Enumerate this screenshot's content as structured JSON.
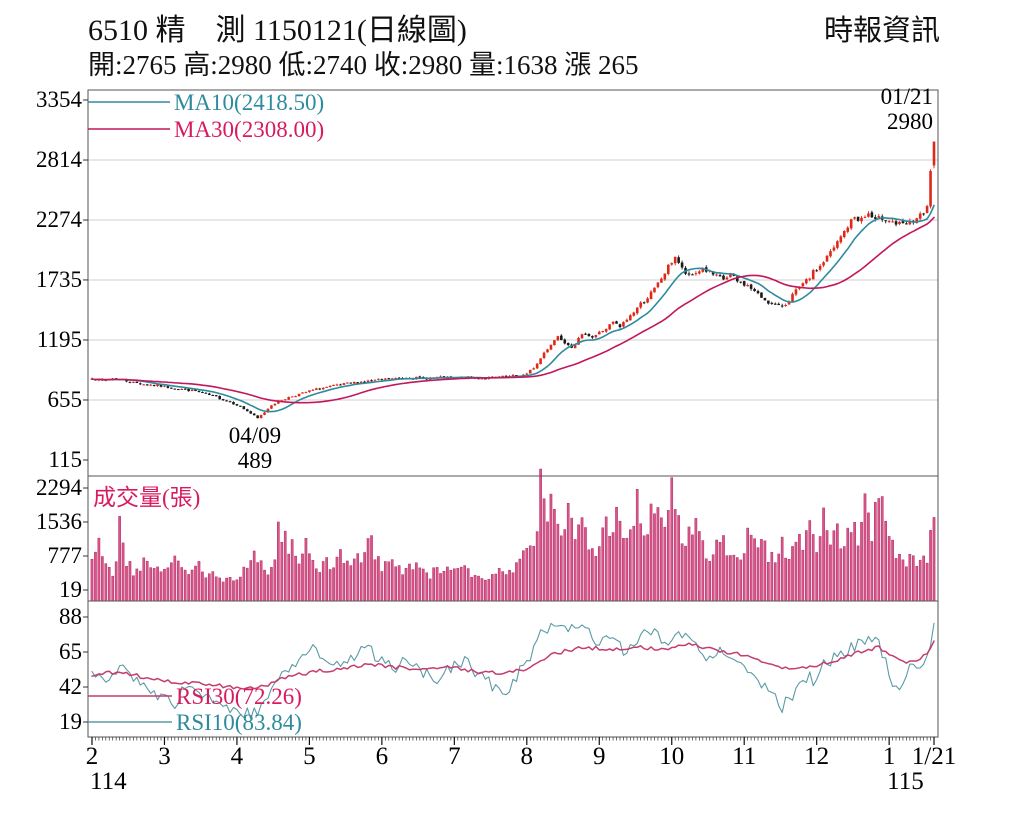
{
  "header": {
    "title": "6510 精　測 1150121(日線圖)",
    "source": "時報資訊",
    "info": "開:2765 高:2980 低:2740 收:2980 量:1638 漲 265"
  },
  "quote": {
    "open": 2765,
    "high": 2980,
    "low": 2740,
    "close": 2980,
    "volume": 1638,
    "change": 265
  },
  "chart_data": {
    "type": "candlestick",
    "title": "6510 精　測 1150121(日線圖)",
    "seed": 7,
    "n_days": 245,
    "grid": true,
    "x_axis": {
      "month_ticks": [
        {
          "label": "2",
          "day": 0
        },
        {
          "label": "3",
          "day": 21
        },
        {
          "label": "4",
          "day": 42
        },
        {
          "label": "5",
          "day": 63
        },
        {
          "label": "6",
          "day": 84
        },
        {
          "label": "7",
          "day": 105
        },
        {
          "label": "8",
          "day": 126
        },
        {
          "label": "9",
          "day": 147
        },
        {
          "label": "10",
          "day": 168
        },
        {
          "label": "11",
          "day": 189
        },
        {
          "label": "12",
          "day": 210
        },
        {
          "label": "1",
          "day": 231
        }
      ],
      "last_tick": {
        "label": "1/21",
        "day": 244
      },
      "year_labels": [
        {
          "label": "114",
          "day": 0
        },
        {
          "label": "115",
          "day": 231
        }
      ]
    },
    "price_panel": {
      "yticks": [
        3354,
        2814,
        2274,
        1735,
        1195,
        655,
        115
      ],
      "ylim": [
        115,
        3354
      ],
      "up_color": "#e02818",
      "down_color": "#1a1a1a",
      "legend": [
        {
          "label": "MA10(2418.50)",
          "name": "MA10",
          "value": 2418.5,
          "period": 10,
          "color": "#2e8b9e"
        },
        {
          "label": "MA30(2308.00)",
          "name": "MA30",
          "value": 2308.0,
          "period": 30,
          "color": "#c2175b"
        }
      ],
      "annotations": [
        {
          "date": "01/21",
          "value": "2980",
          "day": 244,
          "position": "peak"
        },
        {
          "date": "04/09",
          "value": "489",
          "day": 48,
          "position": "trough"
        }
      ],
      "last_candle": {
        "open": 2765,
        "high": 2980,
        "low": 2740,
        "close": 2980
      },
      "close_keypoints": [
        [
          0,
          855
        ],
        [
          3,
          825
        ],
        [
          6,
          850
        ],
        [
          9,
          835
        ],
        [
          12,
          812
        ],
        [
          15,
          798
        ],
        [
          18,
          788
        ],
        [
          21,
          775
        ],
        [
          24,
          762
        ],
        [
          27,
          748
        ],
        [
          30,
          735
        ],
        [
          33,
          705
        ],
        [
          36,
          682
        ],
        [
          39,
          648
        ],
        [
          42,
          612
        ],
        [
          45,
          555
        ],
        [
          48,
          489
        ],
        [
          50,
          545
        ],
        [
          52,
          612
        ],
        [
          55,
          655
        ],
        [
          58,
          690
        ],
        [
          61,
          715
        ],
        [
          63,
          735
        ],
        [
          66,
          758
        ],
        [
          69,
          775
        ],
        [
          72,
          792
        ],
        [
          75,
          805
        ],
        [
          78,
          818
        ],
        [
          81,
          828
        ],
        [
          84,
          838
        ],
        [
          88,
          848
        ],
        [
          92,
          855
        ],
        [
          96,
          850
        ],
        [
          100,
          856
        ],
        [
          104,
          852
        ],
        [
          108,
          858
        ],
        [
          112,
          850
        ],
        [
          116,
          856
        ],
        [
          120,
          862
        ],
        [
          124,
          876
        ],
        [
          126,
          885
        ],
        [
          129,
          980
        ],
        [
          131,
          1080
        ],
        [
          133,
          1160
        ],
        [
          135,
          1230
        ],
        [
          137,
          1180
        ],
        [
          139,
          1140
        ],
        [
          141,
          1200
        ],
        [
          143,
          1260
        ],
        [
          145,
          1220
        ],
        [
          147,
          1260
        ],
        [
          149,
          1300
        ],
        [
          151,
          1350
        ],
        [
          153,
          1310
        ],
        [
          155,
          1380
        ],
        [
          157,
          1450
        ],
        [
          159,
          1520
        ],
        [
          161,
          1580
        ],
        [
          163,
          1650
        ],
        [
          165,
          1750
        ],
        [
          167,
          1850
        ],
        [
          169,
          1950
        ],
        [
          171,
          1830
        ],
        [
          173,
          1760
        ],
        [
          175,
          1800
        ],
        [
          177,
          1840
        ],
        [
          179,
          1800
        ],
        [
          181,
          1760
        ],
        [
          183,
          1740
        ],
        [
          185,
          1780
        ],
        [
          187,
          1720
        ],
        [
          189,
          1700
        ],
        [
          191,
          1660
        ],
        [
          193,
          1600
        ],
        [
          195,
          1560
        ],
        [
          197,
          1520
        ],
        [
          199,
          1490
        ],
        [
          201,
          1520
        ],
        [
          203,
          1600
        ],
        [
          205,
          1660
        ],
        [
          207,
          1720
        ],
        [
          209,
          1800
        ],
        [
          211,
          1860
        ],
        [
          213,
          1940
        ],
        [
          215,
          2020
        ],
        [
          217,
          2120
        ],
        [
          219,
          2220
        ],
        [
          221,
          2300
        ],
        [
          223,
          2280
        ],
        [
          225,
          2330
        ],
        [
          227,
          2260
        ],
        [
          229,
          2300
        ],
        [
          231,
          2280
        ],
        [
          233,
          2240
        ],
        [
          235,
          2225
        ],
        [
          237,
          2240
        ],
        [
          239,
          2290
        ],
        [
          241,
          2320
        ],
        [
          242,
          2380
        ],
        [
          243,
          2715
        ],
        [
          244,
          2980
        ]
      ]
    },
    "volume_panel": {
      "label": "成交量(張)",
      "yticks": [
        2294,
        1536,
        777,
        19
      ],
      "bar_color": "#d9548c",
      "bar_edge": "#a81d52",
      "last_volume": 1638,
      "volume_keypoints": [
        [
          0,
          700
        ],
        [
          2,
          950
        ],
        [
          4,
          500
        ],
        [
          6,
          420
        ],
        [
          8,
          1350
        ],
        [
          10,
          620
        ],
        [
          12,
          420
        ],
        [
          14,
          360
        ],
        [
          16,
          820
        ],
        [
          18,
          520
        ],
        [
          20,
          420
        ],
        [
          22,
          520
        ],
        [
          24,
          720
        ],
        [
          26,
          460
        ],
        [
          28,
          360
        ],
        [
          30,
          620
        ],
        [
          32,
          420
        ],
        [
          34,
          320
        ],
        [
          36,
          360
        ],
        [
          38,
          260
        ],
        [
          40,
          310
        ],
        [
          42,
          230
        ],
        [
          44,
          420
        ],
        [
          46,
          620
        ],
        [
          48,
          820
        ],
        [
          50,
          520
        ],
        [
          52,
          430
        ],
        [
          54,
          1380
        ],
        [
          56,
          1250
        ],
        [
          58,
          920
        ],
        [
          60,
          720
        ],
        [
          62,
          1120
        ],
        [
          64,
          820
        ],
        [
          66,
          520
        ],
        [
          68,
          620
        ],
        [
          70,
          430
        ],
        [
          72,
          820
        ],
        [
          74,
          620
        ],
        [
          76,
          920
        ],
        [
          78,
          720
        ],
        [
          80,
          1320
        ],
        [
          82,
          820
        ],
        [
          84,
          520
        ],
        [
          86,
          720
        ],
        [
          88,
          520
        ],
        [
          90,
          430
        ],
        [
          92,
          620
        ],
        [
          94,
          520
        ],
        [
          96,
          430
        ],
        [
          98,
          360
        ],
        [
          100,
          460
        ],
        [
          102,
          410
        ],
        [
          104,
          510
        ],
        [
          106,
          610
        ],
        [
          108,
          460
        ],
        [
          110,
          360
        ],
        [
          112,
          310
        ],
        [
          114,
          260
        ],
        [
          116,
          310
        ],
        [
          118,
          410
        ],
        [
          120,
          360
        ],
        [
          122,
          510
        ],
        [
          124,
          610
        ],
        [
          126,
          820
        ],
        [
          128,
          950
        ],
        [
          130,
          2300
        ],
        [
          132,
          1550
        ],
        [
          134,
          2250
        ],
        [
          136,
          1350
        ],
        [
          138,
          1850
        ],
        [
          140,
          1050
        ],
        [
          142,
          1650
        ],
        [
          144,
          1250
        ],
        [
          146,
          950
        ],
        [
          148,
          1750
        ],
        [
          150,
          1450
        ],
        [
          152,
          1850
        ],
        [
          154,
          1150
        ],
        [
          156,
          1550
        ],
        [
          158,
          1950
        ],
        [
          160,
          1350
        ],
        [
          162,
          2050
        ],
        [
          164,
          1550
        ],
        [
          166,
          1150
        ],
        [
          168,
          2400
        ],
        [
          170,
          1450
        ],
        [
          172,
          1050
        ],
        [
          174,
          1650
        ],
        [
          176,
          1250
        ],
        [
          178,
          850
        ],
        [
          180,
          950
        ],
        [
          182,
          1350
        ],
        [
          184,
          750
        ],
        [
          186,
          1050
        ],
        [
          188,
          850
        ],
        [
          190,
          1250
        ],
        [
          192,
          950
        ],
        [
          194,
          1450
        ],
        [
          196,
          850
        ],
        [
          198,
          650
        ],
        [
          200,
          1050
        ],
        [
          202,
          750
        ],
        [
          204,
          1250
        ],
        [
          206,
          950
        ],
        [
          208,
          1450
        ],
        [
          210,
          1150
        ],
        [
          212,
          1650
        ],
        [
          214,
          1050
        ],
        [
          216,
          1350
        ],
        [
          218,
          950
        ],
        [
          220,
          1550
        ],
        [
          222,
          1250
        ],
        [
          224,
          1750
        ],
        [
          226,
          1350
        ],
        [
          228,
          2300
        ],
        [
          230,
          1450
        ],
        [
          232,
          1050
        ],
        [
          234,
          850
        ],
        [
          236,
          650
        ],
        [
          238,
          950
        ],
        [
          240,
          550
        ],
        [
          242,
          750
        ],
        [
          244,
          1638
        ]
      ]
    },
    "rsi_panel": {
      "yticks": [
        88,
        65,
        42,
        19
      ],
      "legend": [
        {
          "label": "RSI30(72.26)",
          "name": "RSI30",
          "value": 72.26,
          "color": "#c43d6e"
        },
        {
          "label": "RSI10(83.84)",
          "name": "RSI10",
          "value": 83.84,
          "color": "#5b9aa6"
        }
      ],
      "rsi30_keypoints": [
        [
          0,
          50
        ],
        [
          8,
          52
        ],
        [
          16,
          48
        ],
        [
          24,
          45
        ],
        [
          32,
          44
        ],
        [
          40,
          42
        ],
        [
          48,
          41
        ],
        [
          56,
          48
        ],
        [
          64,
          52
        ],
        [
          72,
          54
        ],
        [
          80,
          57
        ],
        [
          88,
          55
        ],
        [
          96,
          54
        ],
        [
          104,
          55
        ],
        [
          112,
          52
        ],
        [
          120,
          51
        ],
        [
          126,
          54
        ],
        [
          134,
          64
        ],
        [
          142,
          68
        ],
        [
          150,
          67
        ],
        [
          158,
          68
        ],
        [
          166,
          67
        ],
        [
          174,
          70
        ],
        [
          182,
          66
        ],
        [
          190,
          62
        ],
        [
          198,
          56
        ],
        [
          204,
          54
        ],
        [
          210,
          56
        ],
        [
          216,
          60
        ],
        [
          224,
          66
        ],
        [
          228,
          68
        ],
        [
          232,
          62
        ],
        [
          236,
          58
        ],
        [
          240,
          60
        ],
        [
          242,
          64
        ],
        [
          244,
          72.26
        ]
      ],
      "rsi10_keypoints": [
        [
          0,
          52
        ],
        [
          4,
          45
        ],
        [
          8,
          56
        ],
        [
          12,
          48
        ],
        [
          16,
          40
        ],
        [
          20,
          35
        ],
        [
          24,
          31
        ],
        [
          28,
          45
        ],
        [
          32,
          38
        ],
        [
          36,
          33
        ],
        [
          40,
          27
        ],
        [
          44,
          24
        ],
        [
          48,
          26
        ],
        [
          52,
          42
        ],
        [
          56,
          52
        ],
        [
          60,
          58
        ],
        [
          64,
          66
        ],
        [
          68,
          60
        ],
        [
          72,
          56
        ],
        [
          76,
          62
        ],
        [
          80,
          68
        ],
        [
          84,
          58
        ],
        [
          88,
          55
        ],
        [
          92,
          60
        ],
        [
          96,
          52
        ],
        [
          100,
          48
        ],
        [
          104,
          55
        ],
        [
          108,
          60
        ],
        [
          112,
          50
        ],
        [
          116,
          43
        ],
        [
          120,
          39
        ],
        [
          124,
          52
        ],
        [
          126,
          58
        ],
        [
          130,
          78
        ],
        [
          134,
          84
        ],
        [
          138,
          80
        ],
        [
          142,
          86
        ],
        [
          146,
          72
        ],
        [
          150,
          76
        ],
        [
          154,
          66
        ],
        [
          158,
          74
        ],
        [
          162,
          80
        ],
        [
          166,
          70
        ],
        [
          170,
          78
        ],
        [
          174,
          75
        ],
        [
          178,
          62
        ],
        [
          182,
          68
        ],
        [
          186,
          58
        ],
        [
          190,
          54
        ],
        [
          194,
          45
        ],
        [
          198,
          35
        ],
        [
          200,
          29
        ],
        [
          204,
          39
        ],
        [
          208,
          48
        ],
        [
          210,
          43
        ],
        [
          212,
          56
        ],
        [
          216,
          62
        ],
        [
          220,
          68
        ],
        [
          224,
          74
        ],
        [
          228,
          70
        ],
        [
          230,
          58
        ],
        [
          232,
          41
        ],
        [
          234,
          39
        ],
        [
          238,
          58
        ],
        [
          240,
          53
        ],
        [
          242,
          62
        ],
        [
          244,
          83.84
        ]
      ]
    }
  }
}
